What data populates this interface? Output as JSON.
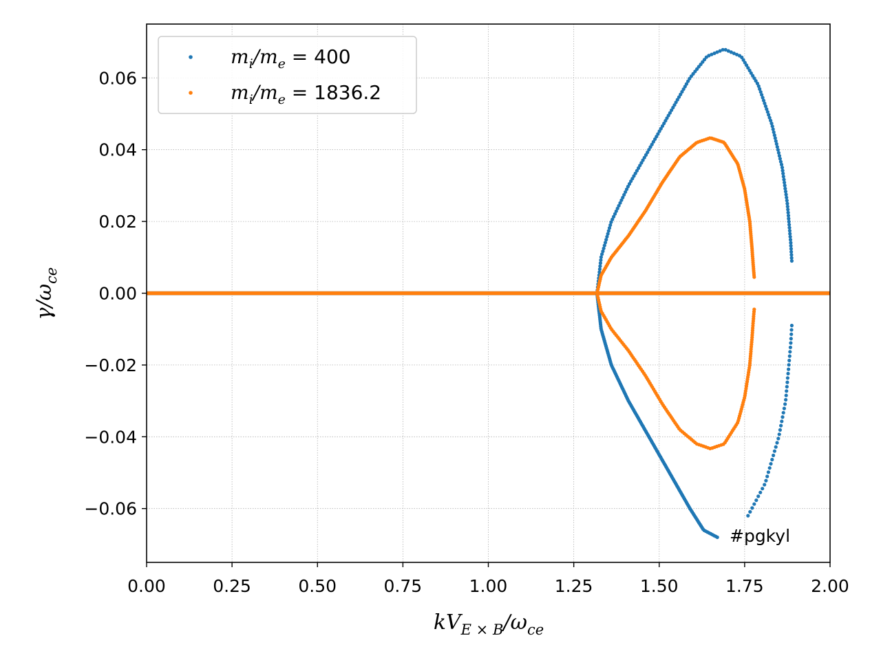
{
  "chart_data": {
    "type": "scatter",
    "xlabel_base": "kV",
    "xlabel_sub": "E × B",
    "xlabel_tail": "/ω",
    "xlabel_tail_sub": "ce",
    "ylabel_base": "γ/ω",
    "ylabel_sub": "ce",
    "xlim": [
      0,
      2
    ],
    "ylim": [
      -0.075,
      0.075
    ],
    "xticks": [
      0,
      0.25,
      0.5,
      0.75,
      1.0,
      1.25,
      1.5,
      1.75,
      2.0
    ],
    "xtick_labels": [
      "0.00",
      "0.25",
      "0.50",
      "0.75",
      "1.00",
      "1.25",
      "1.50",
      "1.75",
      "2.00"
    ],
    "yticks": [
      -0.06,
      -0.04,
      -0.02,
      0.0,
      0.02,
      0.04,
      0.06
    ],
    "ytick_labels": [
      "−0.06",
      "−0.04",
      "−0.02",
      "0.00",
      "0.02",
      "0.04",
      "0.06"
    ],
    "grid": true,
    "legend_position": "upper-left",
    "annotation": "#pgkyl",
    "series": [
      {
        "legend_m1": "m",
        "legend_s1": "i",
        "legend_m2": "/m",
        "legend_s2": "e",
        "legend_val": " = 400",
        "color": "#1f77b4",
        "upper_curve": [
          [
            1.318,
            0.0
          ],
          [
            1.33,
            0.01
          ],
          [
            1.36,
            0.02
          ],
          [
            1.41,
            0.03
          ],
          [
            1.47,
            0.04
          ],
          [
            1.53,
            0.05
          ],
          [
            1.59,
            0.06
          ],
          [
            1.64,
            0.066
          ],
          [
            1.69,
            0.068
          ],
          [
            1.74,
            0.066
          ],
          [
            1.79,
            0.058
          ],
          [
            1.83,
            0.047
          ],
          [
            1.86,
            0.035
          ],
          [
            1.875,
            0.025
          ],
          [
            1.885,
            0.014
          ],
          [
            1.888,
            0.009
          ]
        ],
        "lower_curve": [
          [
            1.318,
            0.0
          ],
          [
            1.33,
            -0.01
          ],
          [
            1.36,
            -0.02
          ],
          [
            1.41,
            -0.03
          ],
          [
            1.47,
            -0.04
          ],
          [
            1.53,
            -0.05
          ],
          [
            1.59,
            -0.06
          ],
          [
            1.63,
            -0.066
          ],
          [
            1.67,
            -0.068
          ]
        ],
        "lower_tail": [
          [
            1.76,
            -0.062
          ],
          [
            1.81,
            -0.053
          ],
          [
            1.85,
            -0.04
          ],
          [
            1.87,
            -0.03
          ],
          [
            1.885,
            -0.014
          ],
          [
            1.888,
            -0.009
          ]
        ],
        "zero_line_until": 2.0
      },
      {
        "legend_m1": "m",
        "legend_s1": "i",
        "legend_m2": "/m",
        "legend_s2": "e",
        "legend_val": " = 1836.2",
        "color": "#ff7f0e",
        "upper_curve": [
          [
            1.318,
            0.0
          ],
          [
            1.33,
            0.005
          ],
          [
            1.36,
            0.01
          ],
          [
            1.41,
            0.016
          ],
          [
            1.46,
            0.023
          ],
          [
            1.51,
            0.031
          ],
          [
            1.56,
            0.038
          ],
          [
            1.61,
            0.042
          ],
          [
            1.65,
            0.0433
          ],
          [
            1.69,
            0.042
          ],
          [
            1.73,
            0.036
          ],
          [
            1.75,
            0.029
          ],
          [
            1.765,
            0.02
          ],
          [
            1.772,
            0.012
          ],
          [
            1.775,
            0.008
          ],
          [
            1.778,
            0.0045
          ]
        ],
        "lower_curve": [
          [
            1.318,
            0.0
          ],
          [
            1.33,
            -0.005
          ],
          [
            1.36,
            -0.01
          ],
          [
            1.41,
            -0.016
          ],
          [
            1.46,
            -0.023
          ],
          [
            1.51,
            -0.031
          ],
          [
            1.56,
            -0.038
          ],
          [
            1.61,
            -0.042
          ],
          [
            1.65,
            -0.0433
          ],
          [
            1.69,
            -0.042
          ],
          [
            1.73,
            -0.036
          ],
          [
            1.75,
            -0.029
          ],
          [
            1.765,
            -0.02
          ],
          [
            1.772,
            -0.012
          ],
          [
            1.775,
            -0.008
          ],
          [
            1.778,
            -0.0045
          ]
        ],
        "lower_tail": [],
        "zero_line_until": 2.0
      }
    ]
  }
}
